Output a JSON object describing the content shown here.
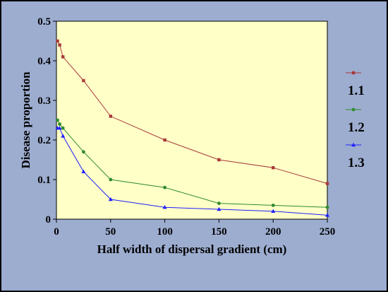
{
  "chart_data": {
    "type": "line",
    "title": "",
    "xlabel": "Half width of dispersal gradient (cm)",
    "ylabel": "Disease proportion",
    "xlim": [
      0,
      250
    ],
    "ylim": [
      0,
      0.5
    ],
    "xticks": [
      "0",
      "50",
      "100",
      "150",
      "200",
      "250"
    ],
    "yticks": [
      "0",
      "0.1",
      "0.2",
      "0.3",
      "0.4",
      "0.5"
    ],
    "grid": false,
    "legend_position": "right",
    "series": [
      {
        "name": "1.1",
        "color": "#a83838",
        "marker": "square",
        "x": [
          1,
          3,
          6,
          25,
          50,
          100,
          150,
          200,
          250
        ],
        "y": [
          0.45,
          0.44,
          0.41,
          0.35,
          0.26,
          0.2,
          0.15,
          0.13,
          0.09
        ]
      },
      {
        "name": "1.2",
        "color": "#2e8b2e",
        "marker": "circle",
        "x": [
          1,
          3,
          6,
          25,
          50,
          100,
          150,
          200,
          250
        ],
        "y": [
          0.25,
          0.24,
          0.23,
          0.17,
          0.1,
          0.08,
          0.04,
          0.035,
          0.03
        ]
      },
      {
        "name": "1.3",
        "color": "#2020ff",
        "marker": "triangle",
        "x": [
          1,
          3,
          6,
          25,
          50,
          100,
          150,
          200,
          250
        ],
        "y": [
          0.23,
          0.23,
          0.21,
          0.12,
          0.05,
          0.03,
          0.025,
          0.02,
          0.01
        ]
      }
    ]
  }
}
